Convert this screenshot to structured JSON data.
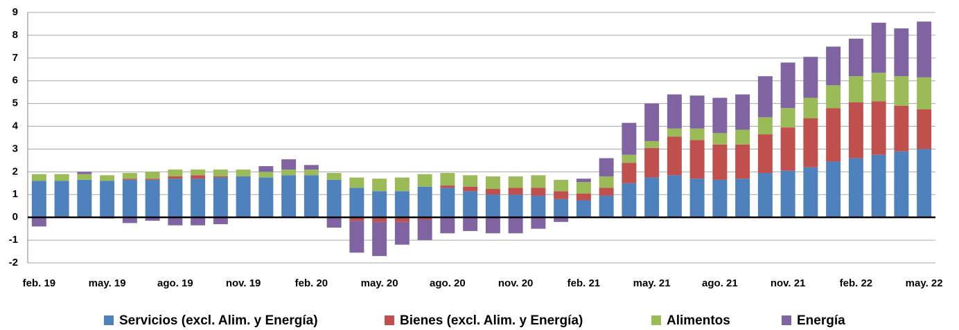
{
  "chart_data": {
    "type": "stacked_bar",
    "categories": [
      "feb. 19",
      null,
      null,
      "may. 19",
      null,
      null,
      "ago. 19",
      null,
      null,
      "nov. 19",
      null,
      null,
      "feb. 20",
      null,
      null,
      "may. 20",
      null,
      null,
      "ago. 20",
      null,
      null,
      "nov. 20",
      null,
      null,
      "feb. 21",
      null,
      null,
      "may. 21",
      null,
      null,
      "ago. 21",
      null,
      null,
      "nov. 21",
      null,
      null,
      "feb. 22",
      null,
      null,
      "may. 22"
    ],
    "series": [
      {
        "name": "Servicios (excl. Alim. y Energía)",
        "color": "#4f81bd",
        "values": [
          1.6,
          1.6,
          1.65,
          1.6,
          1.65,
          1.65,
          1.7,
          1.7,
          1.75,
          1.8,
          1.75,
          1.85,
          1.85,
          1.65,
          1.3,
          1.15,
          1.15,
          1.35,
          1.3,
          1.15,
          1.0,
          1.0,
          0.95,
          0.8,
          0.75,
          0.95,
          1.5,
          1.75,
          1.85,
          1.7,
          1.65,
          1.7,
          1.95,
          2.05,
          2.2,
          2.45,
          2.6,
          2.75,
          2.9,
          3.0
        ]
      },
      {
        "name": "Bienes (excl. Alim. y Energía)",
        "color": "#c0504d",
        "values": [
          0,
          0,
          0,
          0,
          0.05,
          0.05,
          0.1,
          0.15,
          0.05,
          0,
          0,
          0,
          0,
          0,
          -0.15,
          -0.2,
          -0.2,
          -0.1,
          0.1,
          0.2,
          0.25,
          0.3,
          0.35,
          0.35,
          0.3,
          0.35,
          0.9,
          1.3,
          1.7,
          1.7,
          1.55,
          1.5,
          1.7,
          1.9,
          2.15,
          2.35,
          2.45,
          2.35,
          2.0,
          1.75
        ]
      },
      {
        "name": "Alimentos",
        "color": "#9bbb59",
        "values": [
          0.3,
          0.3,
          0.25,
          0.25,
          0.25,
          0.3,
          0.3,
          0.25,
          0.3,
          0.3,
          0.25,
          0.25,
          0.25,
          0.3,
          0.45,
          0.55,
          0.6,
          0.55,
          0.55,
          0.5,
          0.55,
          0.5,
          0.55,
          0.5,
          0.5,
          0.5,
          0.35,
          0.3,
          0.35,
          0.5,
          0.5,
          0.65,
          0.75,
          0.85,
          0.9,
          1.0,
          1.15,
          1.25,
          1.3,
          1.4
        ]
      },
      {
        "name": "Energía",
        "color": "#8064a2",
        "values": [
          -0.4,
          0,
          0.1,
          -0.05,
          -0.25,
          -0.15,
          -0.35,
          -0.35,
          -0.3,
          -0.02,
          0.25,
          0.45,
          0.2,
          -0.45,
          -1.4,
          -1.5,
          -1.0,
          -0.9,
          -0.7,
          -0.6,
          -0.7,
          -0.7,
          -0.5,
          -0.2,
          0.15,
          0.8,
          1.4,
          1.65,
          1.5,
          1.45,
          1.55,
          1.55,
          1.8,
          2.0,
          1.8,
          1.7,
          1.65,
          2.2,
          2.1,
          2.45
        ]
      }
    ],
    "ylim": [
      -2,
      9
    ],
    "yticks": [
      -2,
      -1,
      0,
      1,
      2,
      3,
      4,
      5,
      6,
      7,
      8,
      9
    ],
    "grid": true
  }
}
